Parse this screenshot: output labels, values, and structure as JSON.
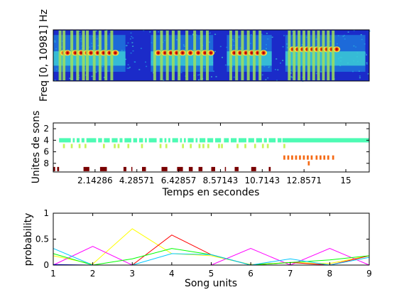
{
  "chart_data": [
    {
      "type": "heatmap",
      "ylabel": "Freq [0, 10981] Hz",
      "background": "#1b2bc9",
      "colormap": [
        "#1b2bc9",
        "#1f9ee6",
        "#3fd7d4",
        "#9fe05a",
        "#f5e43c",
        "#e84b1e",
        "#b80000"
      ],
      "segments": [
        {
          "x_start": 0.0,
          "x_end": 3.7,
          "bursts": [
            0.35,
            0.55,
            0.95,
            1.25,
            1.55,
            1.75,
            2.1,
            2.4,
            2.7,
            3.0
          ],
          "note_freq_frac": 0.55
        },
        {
          "x_start": 5.0,
          "x_end": 8.2,
          "bursts": [
            5.2,
            5.55,
            5.85,
            6.15,
            6.45,
            6.85,
            7.25,
            7.6,
            7.9
          ],
          "note_freq_frac": 0.55
        },
        {
          "x_start": 8.9,
          "x_end": 11.2,
          "bursts": [
            9.1,
            9.4,
            9.7,
            10.0,
            10.3,
            10.6
          ],
          "note_freq_frac": 0.55
        },
        {
          "x_start": 11.9,
          "x_end": 16.0,
          "bursts": [
            12.1,
            12.35,
            12.6,
            12.85,
            13.1,
            13.35,
            13.6,
            13.85,
            14.1,
            14.35
          ],
          "note_freq_frac": 0.62
        }
      ]
    },
    {
      "type": "scatter",
      "xlabel": "Temps en secondes",
      "ylabel": "Unites de sons",
      "xlim": [
        0,
        16.2
      ],
      "ylim": [
        1,
        9.5
      ],
      "x_ticks": [
        "2.14286",
        "4.28571",
        "6.42857",
        "8.57143",
        "10.7143",
        "12.8571",
        "15"
      ],
      "y_ticks": [
        "2",
        "4",
        "6",
        "8"
      ],
      "units": [
        {
          "unit": 4,
          "color": "#4dfbb4",
          "segments": [
            [
              0.3,
              0.9
            ],
            [
              1.0,
              1.1
            ],
            [
              1.2,
              1.35
            ],
            [
              1.45,
              1.6
            ],
            [
              1.7,
              2.2
            ],
            [
              2.3,
              2.5
            ],
            [
              2.6,
              2.9
            ],
            [
              3.0,
              3.3
            ],
            [
              3.4,
              3.55
            ],
            [
              3.65,
              4.0
            ],
            [
              4.1,
              4.3
            ],
            [
              4.4,
              4.6
            ],
            [
              4.7,
              4.8
            ],
            [
              4.9,
              5.3
            ],
            [
              5.45,
              5.6
            ],
            [
              5.7,
              5.8
            ],
            [
              5.9,
              6.0
            ],
            [
              6.1,
              6.4
            ],
            [
              6.5,
              6.6
            ],
            [
              6.7,
              6.8
            ],
            [
              6.9,
              7.2
            ],
            [
              7.3,
              7.4
            ],
            [
              7.5,
              7.8
            ],
            [
              7.9,
              8.2
            ],
            [
              8.3,
              8.6
            ],
            [
              8.75,
              9.0
            ],
            [
              9.1,
              9.4
            ],
            [
              9.5,
              9.9
            ],
            [
              10.0,
              10.3
            ],
            [
              10.4,
              10.7
            ],
            [
              10.8,
              10.95
            ],
            [
              11.05,
              11.4
            ],
            [
              11.5,
              11.7
            ],
            [
              11.75,
              16.2
            ]
          ]
        },
        {
          "unit": 5,
          "color": "#c6f55a",
          "segments": [
            [
              0.5,
              0.6
            ],
            [
              0.9,
              1.0
            ],
            [
              1.3,
              1.4
            ],
            [
              1.6,
              1.7
            ],
            [
              2.55,
              2.65
            ],
            [
              3.1,
              3.2
            ],
            [
              3.3,
              3.4
            ],
            [
              3.8,
              3.9
            ],
            [
              4.5,
              4.6
            ],
            [
              5.45,
              5.55
            ],
            [
              5.75,
              5.85
            ],
            [
              6.6,
              6.7
            ],
            [
              7.0,
              7.1
            ],
            [
              7.45,
              7.55
            ],
            [
              7.65,
              7.75
            ],
            [
              7.9,
              8.0
            ],
            [
              8.45,
              8.55
            ],
            [
              8.6,
              8.7
            ],
            [
              9.4,
              9.5
            ],
            [
              9.8,
              9.9
            ],
            [
              10.3,
              10.4
            ],
            [
              10.7,
              10.8
            ],
            [
              10.95,
              11.05
            ],
            [
              11.8,
              11.9
            ]
          ]
        },
        {
          "unit": 7,
          "color": "#f56a15",
          "segments": [
            [
              11.8,
              11.9
            ],
            [
              12.0,
              12.1
            ],
            [
              12.2,
              12.3
            ],
            [
              12.4,
              12.5
            ],
            [
              12.6,
              12.7
            ],
            [
              12.8,
              12.9
            ],
            [
              13.0,
              13.1
            ],
            [
              13.2,
              13.3
            ],
            [
              13.45,
              13.55
            ],
            [
              13.65,
              13.75
            ],
            [
              13.85,
              13.95
            ],
            [
              14.05,
              14.15
            ],
            [
              14.3,
              14.4
            ]
          ]
        },
        {
          "unit": 8,
          "color": "#f56a15",
          "segments": [
            [
              13.05,
              13.15
            ]
          ]
        },
        {
          "unit": 9,
          "color": "#7a0000",
          "segments": [
            [
              0.0,
              0.1
            ],
            [
              0.2,
              0.3
            ],
            [
              1.55,
              1.85
            ],
            [
              2.4,
              2.75
            ],
            [
              3.6,
              3.75
            ],
            [
              4.0,
              4.05
            ],
            [
              4.55,
              4.75
            ],
            [
              5.55,
              5.85
            ],
            [
              6.35,
              6.65
            ],
            [
              6.95,
              7.15
            ],
            [
              7.45,
              7.65
            ],
            [
              8.1,
              8.3
            ],
            [
              8.8,
              8.85
            ],
            [
              9.3,
              9.5
            ],
            [
              10.15,
              10.4
            ],
            [
              11.05,
              11.15
            ]
          ]
        }
      ]
    },
    {
      "type": "line",
      "xlabel": "Song units",
      "ylabel": "probability",
      "xlim": [
        1,
        9
      ],
      "ylim": [
        0,
        1
      ],
      "x_ticks": [
        "1",
        "2",
        "3",
        "4",
        "5",
        "6",
        "7",
        "8",
        "9"
      ],
      "y_ticks": [
        "0",
        "0.5",
        "1"
      ],
      "x": [
        1,
        2,
        3,
        4,
        5,
        6,
        7,
        8,
        9
      ],
      "series": [
        {
          "color": "#ffff00",
          "values": [
            0.18,
            0.02,
            0.7,
            0.22,
            0.18,
            0.01,
            0.05,
            0.03,
            0.18
          ]
        },
        {
          "color": "#ff00ff",
          "values": [
            0.0,
            0.36,
            0.0,
            0.0,
            0.0,
            0.32,
            0.0,
            0.32,
            0.0
          ]
        },
        {
          "color": "#ff0000",
          "values": [
            0.0,
            0.0,
            0.0,
            0.58,
            0.2,
            0.0,
            0.05,
            0.0,
            0.18
          ]
        },
        {
          "color": "#00ff00",
          "values": [
            0.22,
            0.0,
            0.12,
            0.32,
            0.2,
            0.0,
            0.05,
            0.1,
            0.18
          ]
        },
        {
          "color": "#00c8ff",
          "values": [
            0.32,
            0.0,
            0.0,
            0.22,
            0.2,
            0.0,
            0.12,
            0.0,
            0.15
          ]
        },
        {
          "color": "#0000ff",
          "values": [
            0.01,
            0.0,
            0.0,
            0.0,
            0.0,
            0.0,
            0.0,
            0.0,
            0.0
          ]
        }
      ]
    }
  ]
}
